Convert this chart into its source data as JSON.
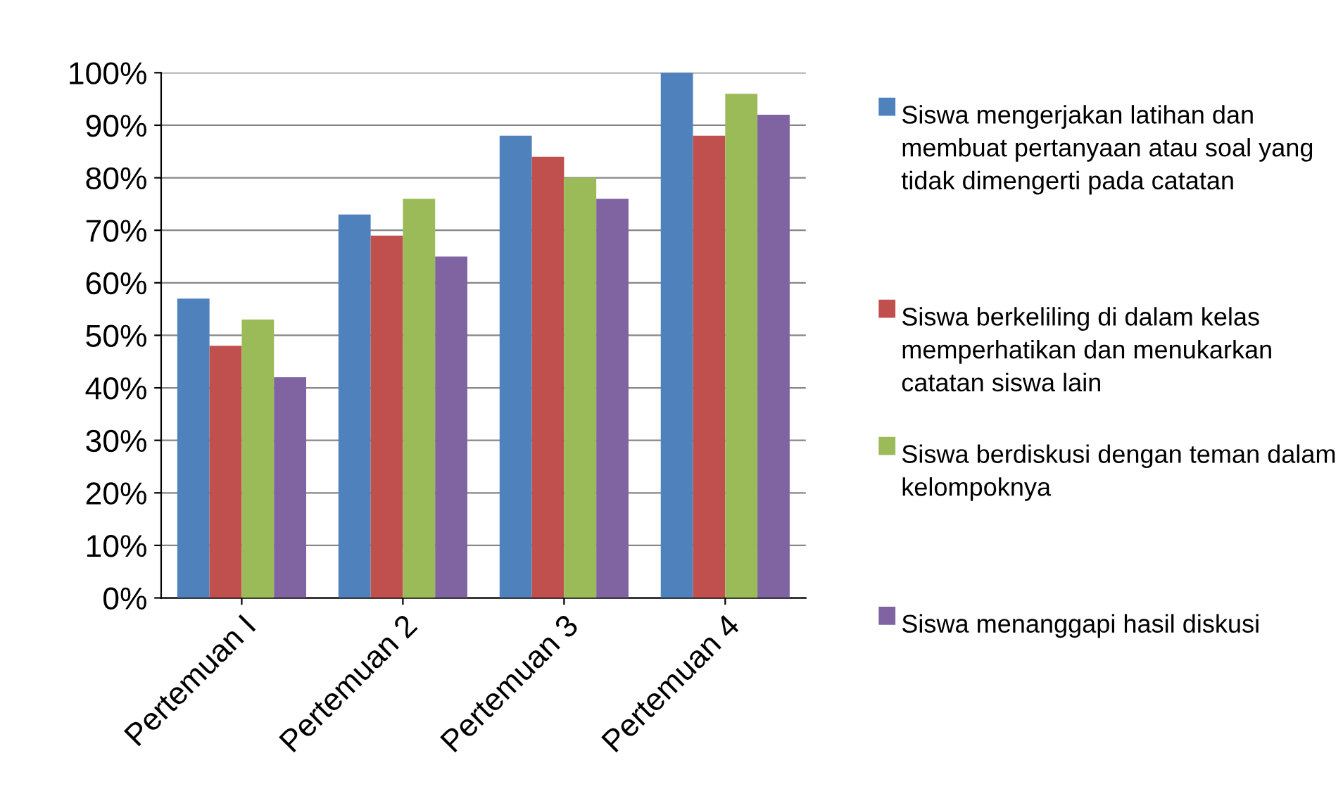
{
  "chart_data": {
    "type": "bar",
    "categories": [
      "Pertemuan I",
      "Pertemuan 2",
      "Pertemuan 3",
      "Pertemuan 4"
    ],
    "series": [
      {
        "name": "Siswa mengerjakan latihan dan membuat pertanyaan atau soal yang tidak dimengerti pada catatan",
        "color": "#4f81bd",
        "values": [
          57,
          73,
          88,
          100
        ]
      },
      {
        "name": "Siswa berkeliling di dalam kelas memperhatikan dan menukarkan catatan siswa lain",
        "color": "#c0504d",
        "values": [
          48,
          69,
          84,
          88
        ]
      },
      {
        "name": "Siswa berdiskusi dengan teman dalam kelompoknya",
        "color": "#9bbb59",
        "values": [
          53,
          76,
          80,
          96
        ]
      },
      {
        "name": "Siswa menanggapi hasil diskusi",
        "color": "#8064a2",
        "values": [
          42,
          65,
          76,
          92
        ]
      }
    ],
    "ylim": [
      0,
      100
    ],
    "yticks": [
      {
        "value": 0,
        "label": "0%"
      },
      {
        "value": 10,
        "label": "10%"
      },
      {
        "value": 20,
        "label": "20%"
      },
      {
        "value": 30,
        "label": "30%"
      },
      {
        "value": 40,
        "label": "40%"
      },
      {
        "value": 50,
        "label": "50%"
      },
      {
        "value": 60,
        "label": "60%"
      },
      {
        "value": 70,
        "label": "70%"
      },
      {
        "value": 80,
        "label": "80%"
      },
      {
        "value": 90,
        "label": "90%"
      },
      {
        "value": 100,
        "label": "100%"
      }
    ],
    "grid": "y",
    "legend": "right"
  }
}
